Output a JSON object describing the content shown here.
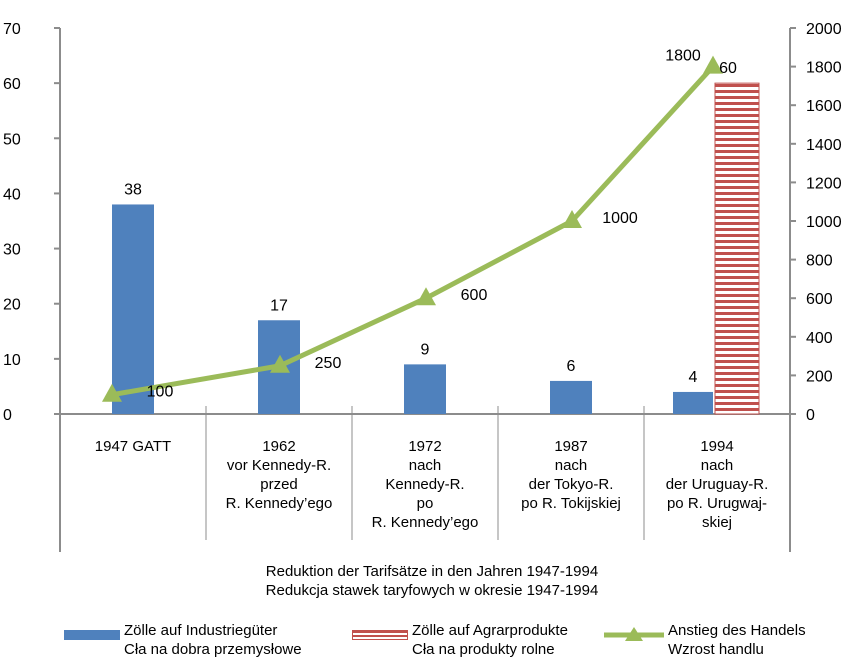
{
  "chart_data": {
    "type": "bar",
    "title": "",
    "categories": [
      [
        "1947 GATT"
      ],
      [
        "1962",
        "vor Kennedy-R.",
        "przed",
        "R. Kennedy’ego"
      ],
      [
        "1972",
        "nach",
        "Kennedy-R.",
        "po",
        "R. Kennedy’ego"
      ],
      [
        "1987",
        "nach",
        "der Tokyo-R.",
        "po R. Tokijskiej"
      ],
      [
        "1994",
        "nach",
        "der Uruguay-R.",
        "po R. Urugwaj-",
        "skiej"
      ]
    ],
    "xlabel": [
      "Reduktion der Tarifsätze in den Jahren 1947-1994",
      "Redukcja stawek taryfowych w okresie 1947-1994"
    ],
    "y_left": {
      "ticks": [
        "0",
        "10",
        "20",
        "30",
        "40",
        "50",
        "60",
        "70"
      ],
      "ylim": [
        0,
        70
      ]
    },
    "y_right": {
      "ticks": [
        "0",
        "200",
        "400",
        "600",
        "800",
        "1000",
        "1200",
        "1400",
        "1600",
        "1800",
        "2000"
      ],
      "ylim": [
        0,
        2000
      ]
    },
    "grid": false,
    "legend_position": "bottom",
    "series": [
      {
        "name": [
          "Zölle auf Industriegüter",
          "Cła na dobra przemysłowe"
        ],
        "kind": "bar",
        "axis": "left",
        "color": "#4F81BD",
        "values": [
          38,
          17,
          9,
          6,
          4
        ],
        "labels": [
          "38",
          "17",
          "9",
          "6",
          "4"
        ]
      },
      {
        "name": [
          "Zölle auf Agrarprodukte",
          "Cła na produkty rolne"
        ],
        "kind": "bar-striped",
        "axis": "left",
        "color": "#C0504D",
        "values": [
          null,
          null,
          null,
          null,
          60
        ],
        "labels": [
          "",
          "",
          "",
          "",
          "60"
        ]
      },
      {
        "name": [
          "Anstieg des Handels",
          "Wzrost handlu"
        ],
        "kind": "line",
        "axis": "right",
        "color": "#9BBB59",
        "values": [
          100,
          250,
          600,
          1000,
          1800
        ],
        "labels": [
          "100",
          "250",
          "600",
          "1000",
          "1800"
        ]
      }
    ]
  }
}
